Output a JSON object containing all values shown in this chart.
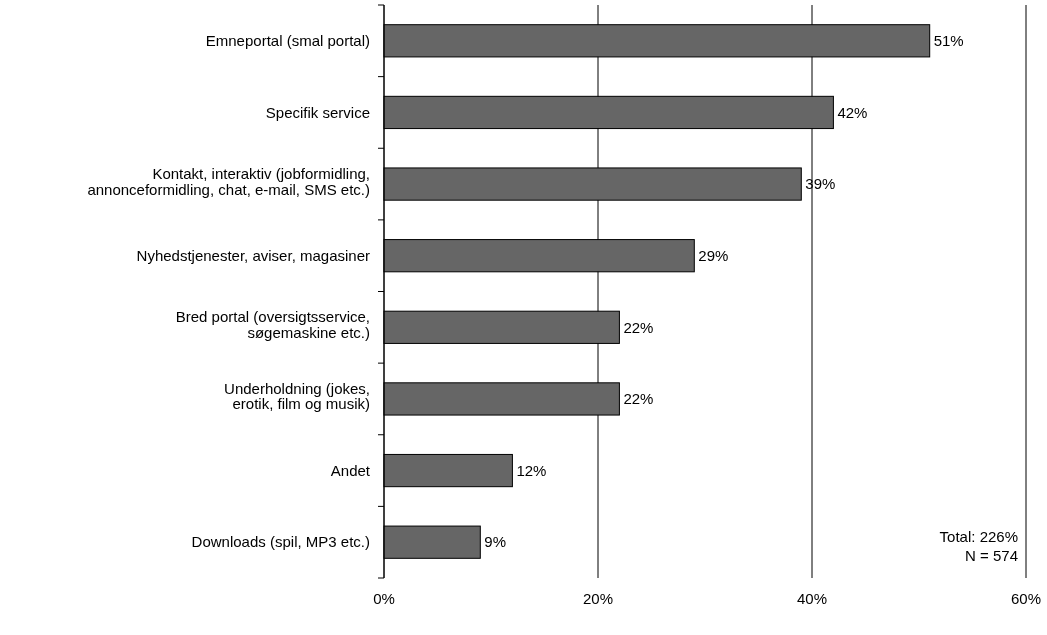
{
  "chart_data": {
    "type": "bar",
    "orientation": "horizontal",
    "categories": [
      "Emneportal (smal portal)",
      "Specifik service",
      "Kontakt, interaktiv (jobformidling,\nannonceformidling, chat, e-mail, SMS etc.)",
      "Nyhedstjenester, aviser, magasiner",
      "Bred portal (oversigtsservice,\nsøgemaskine etc.)",
      "Underholdning (jokes,\nerotik, film og musik)",
      "Andet",
      "Downloads (spil, MP3 etc.)"
    ],
    "values": [
      51,
      42,
      39,
      29,
      22,
      22,
      12,
      9
    ],
    "value_labels": [
      "51%",
      "42%",
      "39%",
      "29%",
      "22%",
      "22%",
      "12%",
      "9%"
    ],
    "color": "#666666",
    "xlim": [
      0,
      60
    ],
    "xticks": [
      {
        "value": 0,
        "label": "0%"
      },
      {
        "value": 20,
        "label": "20%"
      },
      {
        "value": 40,
        "label": "40%"
      },
      {
        "value": 60,
        "label": "60%"
      }
    ],
    "grid": "x",
    "annotations": [
      "Total: 226%",
      "N = 574"
    ]
  }
}
